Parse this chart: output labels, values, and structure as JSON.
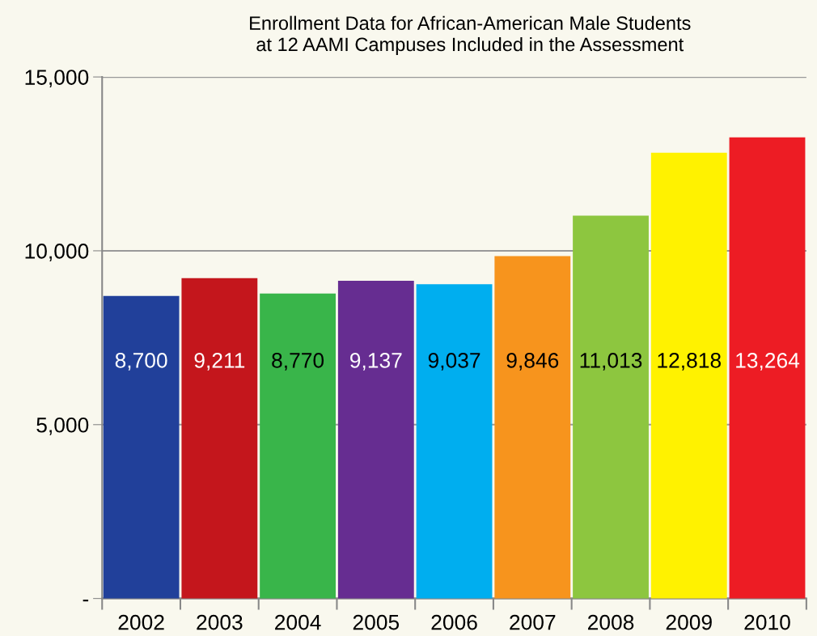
{
  "chart_data": {
    "type": "bar",
    "title": "Enrollment Data for African-American Male Students\nat 12 AAMI Campuses Included in the Assessment",
    "categories": [
      "2002",
      "2003",
      "2004",
      "2005",
      "2006",
      "2007",
      "2008",
      "2009",
      "2010"
    ],
    "values": [
      8700,
      9211,
      8770,
      9137,
      9037,
      9846,
      11013,
      12818,
      13264
    ],
    "colors": [
      "#21409a",
      "#c4161c",
      "#39b54a",
      "#662d91",
      "#00aeef",
      "#f7941d",
      "#8dc63f",
      "#fff200",
      "#ed1c24"
    ],
    "value_labels": [
      "8,700",
      "9,211",
      "8,770",
      "9,137",
      "9,037",
      "9,846",
      "11,013",
      "12,818",
      "13,264"
    ],
    "ylim": [
      0,
      15000
    ],
    "yticks": [
      {
        "value": 0,
        "label": "-"
      },
      {
        "value": 5000,
        "label": "5,000"
      },
      {
        "value": 10000,
        "label": "10,000"
      },
      {
        "value": 15000,
        "label": "15,000"
      }
    ],
    "grid": "y",
    "legend": false
  }
}
